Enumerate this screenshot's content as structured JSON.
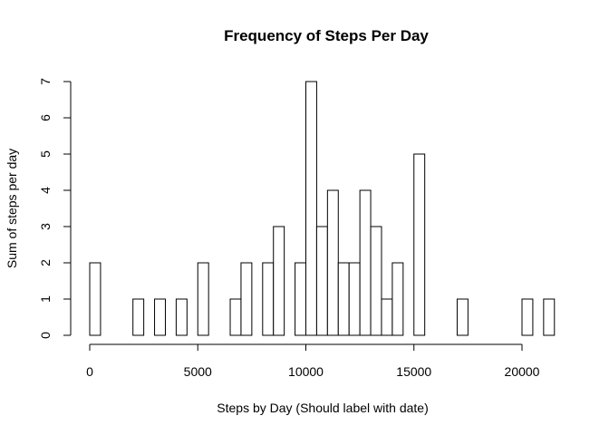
{
  "chart_data": {
    "type": "bar",
    "title": "Frequency of Steps Per Day",
    "xlabel": "Steps by Day (Should label with date)",
    "ylabel": "Sum of steps per day",
    "bin_width": 500,
    "x": [
      0,
      500,
      1000,
      1500,
      2000,
      2500,
      3000,
      3500,
      4000,
      4500,
      5000,
      5500,
      6000,
      6500,
      7000,
      7500,
      8000,
      8500,
      9000,
      9500,
      10000,
      10500,
      11000,
      11500,
      12000,
      12500,
      13000,
      13500,
      14000,
      14500,
      15000,
      15500,
      16000,
      16500,
      17000,
      17500,
      18000,
      18500,
      19000,
      19500,
      20000,
      20500,
      21000
    ],
    "values": [
      2,
      0,
      0,
      0,
      1,
      0,
      1,
      0,
      1,
      0,
      2,
      0,
      0,
      1,
      2,
      0,
      2,
      3,
      0,
      2,
      7,
      3,
      4,
      2,
      2,
      4,
      3,
      1,
      2,
      0,
      5,
      0,
      0,
      0,
      1,
      0,
      0,
      0,
      0,
      0,
      1,
      0,
      1
    ],
    "xlim": [
      0,
      21500
    ],
    "ylim": [
      0,
      7
    ],
    "xticks": [
      "0",
      "5000",
      "10000",
      "15000",
      "20000"
    ],
    "yticks": [
      "0",
      "1",
      "2",
      "3",
      "4",
      "5",
      "6",
      "7"
    ],
    "grid": false,
    "bar_fill": "#ffffff",
    "bar_stroke": "#000000"
  }
}
